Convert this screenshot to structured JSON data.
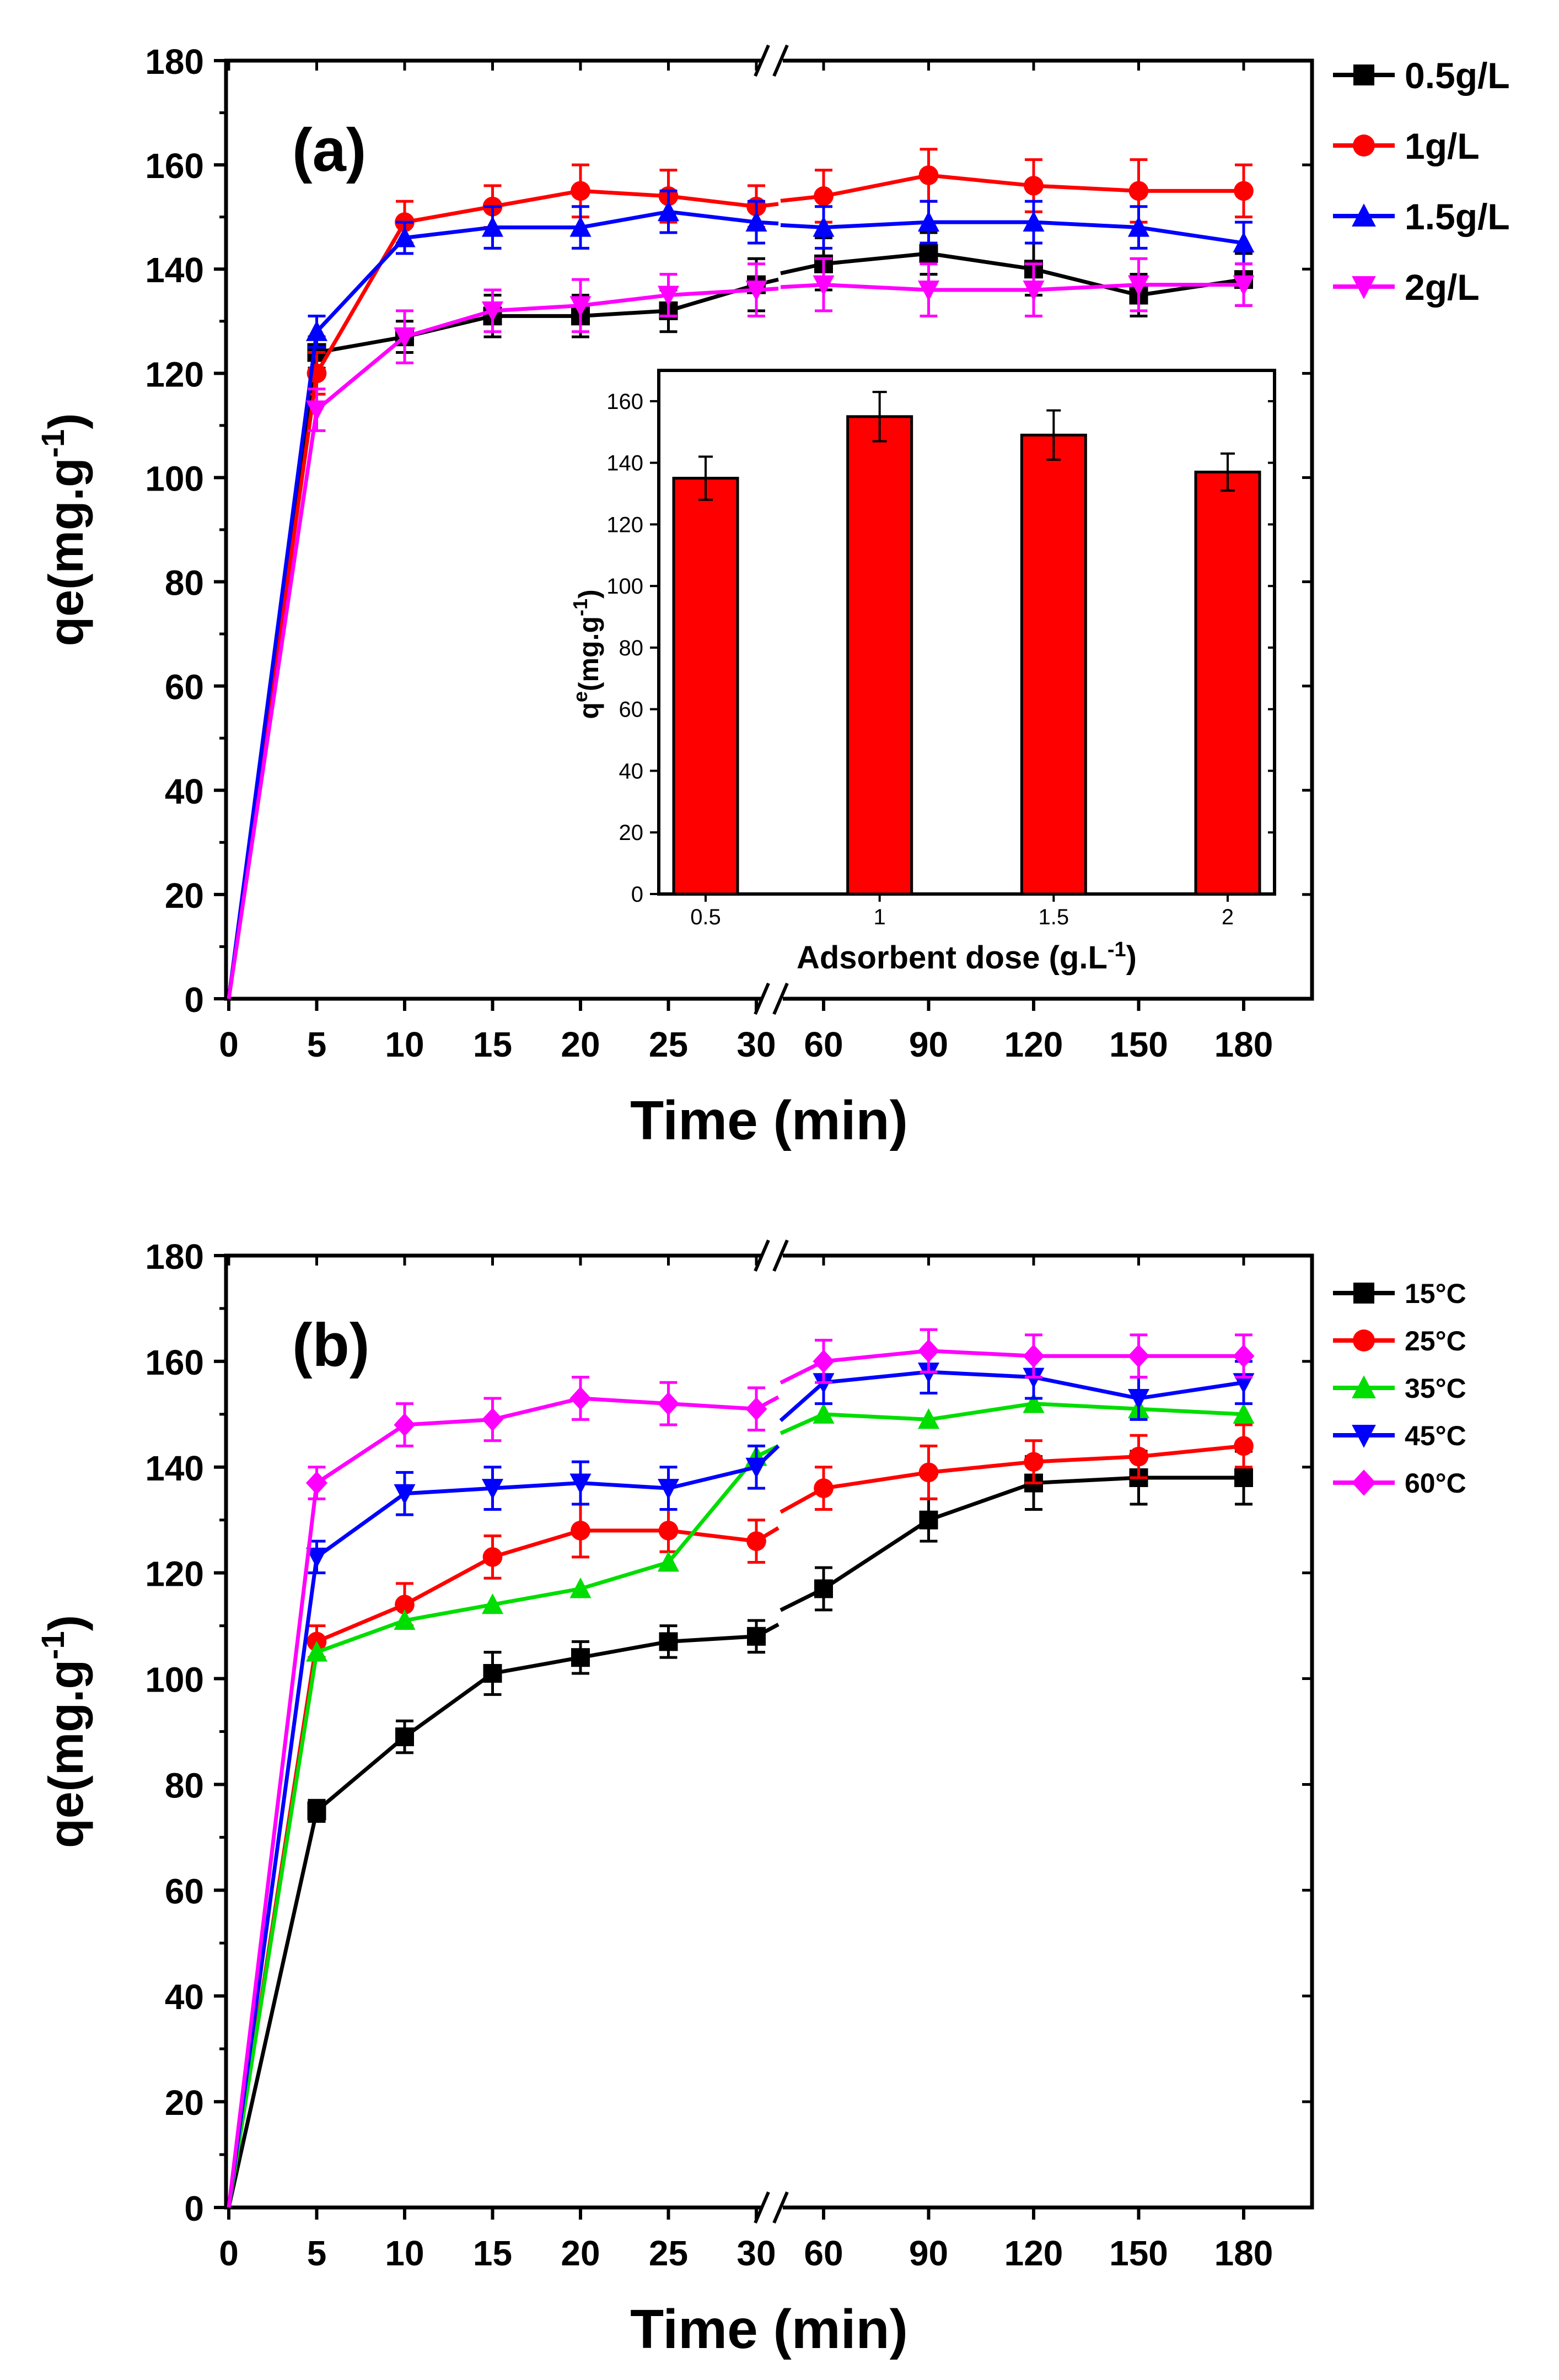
{
  "chart_data": [
    {
      "panel": "(a)",
      "type": "line",
      "xlabel": "Time (min)",
      "ylabel_main": "qe(mg.g",
      "ylabel_sup": "-1",
      "ylabel_tail": ")",
      "ylim": [
        0,
        180
      ],
      "yticks": [
        "0",
        "20",
        "40",
        "60",
        "80",
        "100",
        "120",
        "140",
        "160",
        "180"
      ],
      "x": [
        "0",
        "5",
        "10",
        "15",
        "20",
        "25",
        "30",
        "60",
        "90",
        "120",
        "150",
        "180"
      ],
      "axis_break": "after 30",
      "legend_position": "top-right",
      "series": [
        {
          "name": "0.5g/L",
          "color": "#000000",
          "marker": "square",
          "values": [
            0,
            124,
            127,
            131,
            131,
            132,
            137,
            141,
            143,
            140,
            135,
            138
          ],
          "errors": [
            0,
            3,
            3,
            4,
            4,
            4,
            5,
            5,
            4,
            5,
            4,
            5
          ]
        },
        {
          "name": "1g/L",
          "color": "#ff0000",
          "marker": "circle",
          "values": [
            0,
            120,
            149,
            152,
            155,
            154,
            152,
            154,
            158,
            156,
            155,
            155
          ],
          "errors": [
            0,
            4,
            4,
            4,
            5,
            5,
            4,
            5,
            5,
            5,
            6,
            5
          ]
        },
        {
          "name": "1.5g/L",
          "color": "#0000ff",
          "marker": "triangle-up",
          "values": [
            0,
            128,
            146,
            148,
            148,
            151,
            149,
            148,
            149,
            149,
            148,
            145
          ],
          "errors": [
            0,
            3,
            3,
            4,
            4,
            4,
            4,
            4,
            4,
            4,
            4,
            4
          ]
        },
        {
          "name": "2g/L",
          "color": "#ff00ff",
          "marker": "triangle-down",
          "values": [
            0,
            113,
            127,
            132,
            133,
            135,
            136,
            137,
            136,
            136,
            137,
            137
          ],
          "errors": [
            0,
            4,
            5,
            4,
            5,
            4,
            5,
            5,
            5,
            5,
            5,
            4
          ]
        }
      ],
      "inset": {
        "type": "bar",
        "xlabel": "Adsorbent dose (g.L",
        "xlabel_sup": "-1",
        "xlabel_tail": ")",
        "ylabel_main": "q",
        "ylabel_sup": "e",
        "ylabel_tail": "(mg.g",
        "ylabel_sup2": "-1",
        "ylabel_end": ")",
        "categories": [
          "0.5",
          "1",
          "1.5",
          "2"
        ],
        "values": [
          135,
          155,
          149,
          137
        ],
        "errors": [
          7,
          8,
          8,
          6
        ],
        "ylim": [
          0,
          170
        ],
        "yticks": [
          "0",
          "20",
          "40",
          "60",
          "80",
          "100",
          "120",
          "140",
          "160"
        ],
        "bar_color": "#ff0000"
      }
    },
    {
      "panel": "(b)",
      "type": "line",
      "xlabel": "Time (min)",
      "ylabel_main": "qe(mg.g",
      "ylabel_sup": "-1",
      "ylabel_tail": ")",
      "ylim": [
        0,
        180
      ],
      "yticks": [
        "0",
        "20",
        "40",
        "60",
        "80",
        "100",
        "120",
        "140",
        "160",
        "180"
      ],
      "x": [
        "0",
        "5",
        "10",
        "15",
        "20",
        "25",
        "30",
        "60",
        "90",
        "120",
        "150",
        "180"
      ],
      "axis_break": "after 30",
      "legend_position": "top-right",
      "series": [
        {
          "name": "15°C",
          "color": "#000000",
          "marker": "square",
          "values": [
            0,
            75,
            89,
            101,
            104,
            107,
            108,
            117,
            130,
            137,
            138,
            138
          ],
          "errors": [
            0,
            2,
            3,
            4,
            3,
            3,
            3,
            4,
            4,
            5,
            5,
            5
          ]
        },
        {
          "name": "25°C",
          "color": "#ff0000",
          "marker": "circle",
          "values": [
            0,
            107,
            114,
            123,
            128,
            128,
            126,
            136,
            139,
            141,
            142,
            144
          ],
          "errors": [
            0,
            3,
            4,
            4,
            5,
            4,
            4,
            4,
            5,
            4,
            4,
            4
          ]
        },
        {
          "name": "35°C",
          "color": "#00dd00",
          "marker": "triangle-up",
          "values": [
            0,
            105,
            111,
            114,
            117,
            122,
            142,
            150,
            149,
            152,
            151,
            150
          ],
          "errors": [
            0,
            0,
            0,
            0,
            0,
            0,
            0,
            0,
            0,
            0,
            0,
            0
          ]
        },
        {
          "name": "45°C",
          "color": "#0000ff",
          "marker": "triangle-down",
          "values": [
            0,
            123,
            135,
            136,
            137,
            136,
            140,
            156,
            158,
            157,
            153,
            156
          ],
          "errors": [
            0,
            3,
            4,
            4,
            4,
            4,
            4,
            4,
            4,
            4,
            4,
            4
          ]
        },
        {
          "name": "60°C",
          "color": "#ff00ff",
          "marker": "diamond",
          "values": [
            0,
            137,
            148,
            149,
            153,
            152,
            151,
            160,
            162,
            161,
            161,
            161
          ],
          "errors": [
            0,
            3,
            4,
            4,
            4,
            4,
            4,
            4,
            4,
            4,
            4,
            4
          ]
        }
      ]
    }
  ]
}
